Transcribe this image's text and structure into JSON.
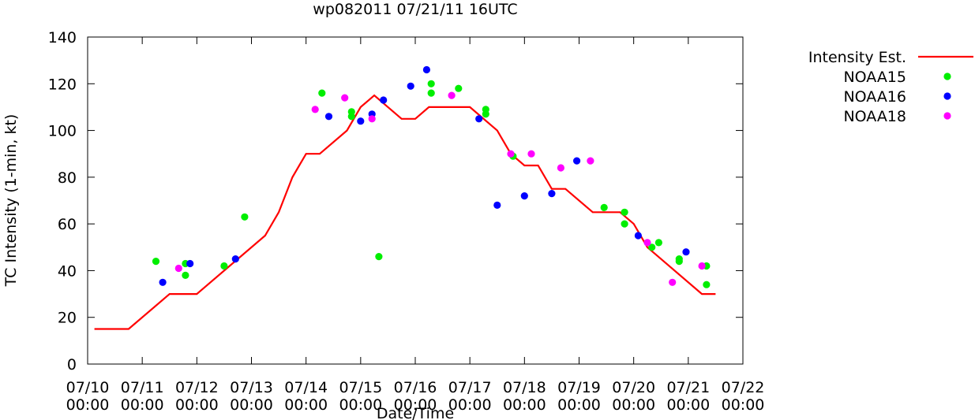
{
  "chart_data": {
    "type": "scatter",
    "title": "wp082011 07/21/11 16UTC",
    "xlabel": "Date/Time",
    "ylabel": "TC Intensity (1-min, kt)",
    "ylim": [
      0,
      140
    ],
    "yticks": [
      0,
      20,
      40,
      60,
      80,
      100,
      120,
      140
    ],
    "xlim": [
      "2011-07-10 00:00",
      "2011-07-22 00:00"
    ],
    "xticks": [
      {
        "date": "07/10",
        "time": "00:00"
      },
      {
        "date": "07/11",
        "time": "00:00"
      },
      {
        "date": "07/12",
        "time": "00:00"
      },
      {
        "date": "07/13",
        "time": "00:00"
      },
      {
        "date": "07/14",
        "time": "00:00"
      },
      {
        "date": "07/15",
        "time": "00:00"
      },
      {
        "date": "07/16",
        "time": "00:00"
      },
      {
        "date": "07/17",
        "time": "00:00"
      },
      {
        "date": "07/18",
        "time": "00:00"
      },
      {
        "date": "07/19",
        "time": "00:00"
      },
      {
        "date": "07/20",
        "time": "00:00"
      },
      {
        "date": "07/21",
        "time": "00:00"
      },
      {
        "date": "07/22",
        "time": "00:00"
      }
    ],
    "grid": false,
    "legend": "outside-right-top",
    "series": [
      {
        "name": "Intensity Est.",
        "kind": "line",
        "color": "#ff0000",
        "points": [
          [
            "2011-07-10 03:00",
            15
          ],
          [
            "2011-07-10 18:00",
            15
          ],
          [
            "2011-07-11 12:00",
            30
          ],
          [
            "2011-07-12 00:00",
            30
          ],
          [
            "2011-07-13 06:00",
            55
          ],
          [
            "2011-07-13 12:00",
            65
          ],
          [
            "2011-07-13 18:00",
            80
          ],
          [
            "2011-07-14 00:00",
            90
          ],
          [
            "2011-07-14 06:00",
            90
          ],
          [
            "2011-07-14 18:00",
            100
          ],
          [
            "2011-07-15 00:00",
            110
          ],
          [
            "2011-07-15 06:00",
            115
          ],
          [
            "2011-07-15 12:00",
            110
          ],
          [
            "2011-07-15 18:00",
            105
          ],
          [
            "2011-07-16 00:00",
            105
          ],
          [
            "2011-07-16 06:00",
            110
          ],
          [
            "2011-07-17 00:00",
            110
          ],
          [
            "2011-07-17 12:00",
            100
          ],
          [
            "2011-07-17 18:00",
            90
          ],
          [
            "2011-07-18 00:00",
            85
          ],
          [
            "2011-07-18 06:00",
            85
          ],
          [
            "2011-07-18 12:00",
            75
          ],
          [
            "2011-07-18 18:00",
            75
          ],
          [
            "2011-07-19 06:00",
            65
          ],
          [
            "2011-07-19 18:00",
            65
          ],
          [
            "2011-07-20 00:00",
            60
          ],
          [
            "2011-07-20 06:00",
            50
          ],
          [
            "2011-07-21 06:00",
            30
          ],
          [
            "2011-07-21 12:00",
            30
          ]
        ]
      },
      {
        "name": "NOAA15",
        "kind": "scatter",
        "color": "#00ee00",
        "points": [
          [
            "2011-07-11 06:00",
            44
          ],
          [
            "2011-07-11 19:00",
            43
          ],
          [
            "2011-07-11 19:00",
            38
          ],
          [
            "2011-07-12 12:00",
            42
          ],
          [
            "2011-07-12 21:00",
            63
          ],
          [
            "2011-07-14 07:00",
            116
          ],
          [
            "2011-07-14 20:00",
            108
          ],
          [
            "2011-07-14 20:00",
            106
          ],
          [
            "2011-07-15 08:00",
            46
          ],
          [
            "2011-07-16 07:00",
            120
          ],
          [
            "2011-07-16 07:00",
            116
          ],
          [
            "2011-07-16 19:00",
            118
          ],
          [
            "2011-07-17 07:00",
            109
          ],
          [
            "2011-07-17 07:00",
            107
          ],
          [
            "2011-07-17 19:00",
            89
          ],
          [
            "2011-07-19 11:00",
            67
          ],
          [
            "2011-07-19 20:00",
            65
          ],
          [
            "2011-07-19 20:00",
            60
          ],
          [
            "2011-07-20 08:00",
            50
          ],
          [
            "2011-07-20 11:00",
            52
          ],
          [
            "2011-07-20 20:00",
            45
          ],
          [
            "2011-07-20 20:00",
            44
          ],
          [
            "2011-07-21 08:00",
            42
          ],
          [
            "2011-07-21 08:00",
            34
          ]
        ]
      },
      {
        "name": "NOAA16",
        "kind": "scatter",
        "color": "#0000ff",
        "points": [
          [
            "2011-07-11 09:00",
            35
          ],
          [
            "2011-07-11 21:00",
            43
          ],
          [
            "2011-07-12 17:00",
            45
          ],
          [
            "2011-07-14 10:00",
            106
          ],
          [
            "2011-07-15 00:00",
            104
          ],
          [
            "2011-07-15 05:00",
            107
          ],
          [
            "2011-07-15 10:00",
            113
          ],
          [
            "2011-07-15 22:00",
            119
          ],
          [
            "2011-07-16 05:00",
            126
          ],
          [
            "2011-07-17 04:00",
            105
          ],
          [
            "2011-07-17 12:00",
            68
          ],
          [
            "2011-07-18 00:00",
            72
          ],
          [
            "2011-07-18 12:00",
            73
          ],
          [
            "2011-07-18 23:00",
            87
          ],
          [
            "2011-07-20 02:00",
            55
          ],
          [
            "2011-07-20 23:00",
            48
          ]
        ]
      },
      {
        "name": "NOAA18",
        "kind": "scatter",
        "color": "#ff00ff",
        "points": [
          [
            "2011-07-11 16:00",
            41
          ],
          [
            "2011-07-14 04:00",
            109
          ],
          [
            "2011-07-14 17:00",
            114
          ],
          [
            "2011-07-15 05:00",
            105
          ],
          [
            "2011-07-16 16:00",
            115
          ],
          [
            "2011-07-17 18:00",
            90
          ],
          [
            "2011-07-18 03:00",
            90
          ],
          [
            "2011-07-18 16:00",
            84
          ],
          [
            "2011-07-19 05:00",
            87
          ],
          [
            "2011-07-20 06:00",
            52
          ],
          [
            "2011-07-20 17:00",
            35
          ],
          [
            "2011-07-21 06:00",
            42
          ]
        ]
      }
    ]
  }
}
